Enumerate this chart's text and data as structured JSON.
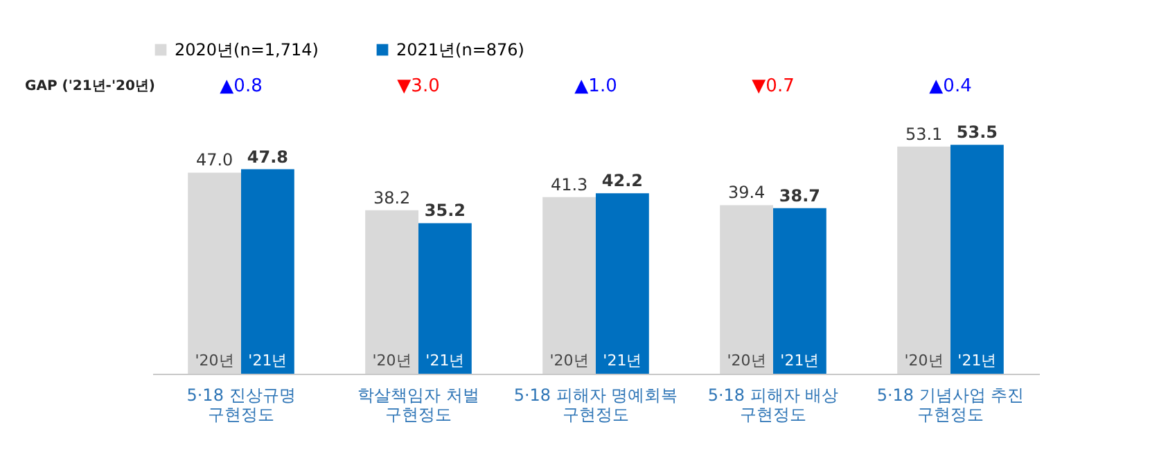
{
  "chart_data": {
    "type": "bar",
    "categories": [
      "5·18 진상규명\n구현정도",
      "학살책임자 처벌\n구현정도",
      "5·18  피해자 명예회복\n구현정도",
      "5·18 피해자 배상\n구현정도",
      "5·18 기념사업 추진\n구현정도"
    ],
    "series": [
      {
        "name": "2020년(n=1,714)",
        "color": "#d9d9d9",
        "values": [
          47.0,
          38.2,
          41.3,
          39.4,
          53.1
        ],
        "value_labels": [
          "47.0",
          "38.2",
          "41.3",
          "39.4",
          "53.1"
        ]
      },
      {
        "name": "2021년(n=876)",
        "color": "#0070c0",
        "values": [
          47.8,
          35.2,
          42.2,
          38.7,
          53.5
        ],
        "value_labels": [
          "47.8",
          "35.2",
          "42.2",
          "38.7",
          "53.5"
        ]
      }
    ],
    "legend": "top",
    "annotations": [
      "GAP ('21년-'20년)",
      "'20년",
      "'21년",
      "▲0.8",
      "▼3.0",
      "▲1.0",
      "▼0.7",
      "▲0.4"
    ]
  }
}
